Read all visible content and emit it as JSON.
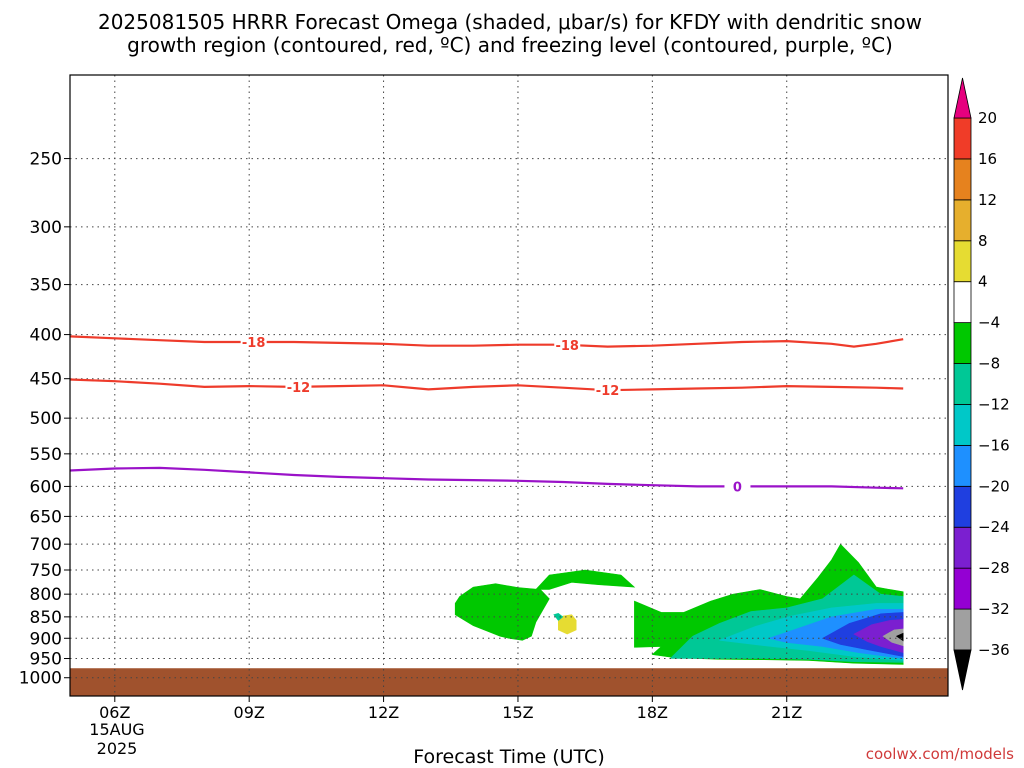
{
  "chart_data": {
    "type": "heatmap",
    "title_line1": "2025081505 HRRR Forecast Omega (shaded, μbar/s) for KFDY with dendritic snow",
    "title_line2": "growth region (contoured, red, ºC) and freezing level (contoured, purple, ºC)",
    "xlabel": "Forecast Time (UTC)",
    "credit": "coolwx.com/models",
    "x_range_hours": [
      5,
      24.6
    ],
    "x_ticks": [
      {
        "hour": 6,
        "label": "06Z"
      },
      {
        "hour": 9,
        "label": "09Z"
      },
      {
        "hour": 12,
        "label": "12Z"
      },
      {
        "hour": 15,
        "label": "15Z"
      },
      {
        "hour": 18,
        "label": "18Z"
      },
      {
        "hour": 21,
        "label": "21Z"
      }
    ],
    "date_lines": [
      "15AUG",
      "2025"
    ],
    "y_axis": {
      "scale": "log",
      "range": [
        200,
        1050
      ],
      "inverted": true
    },
    "y_ticks": [
      250,
      300,
      350,
      400,
      450,
      500,
      550,
      600,
      650,
      700,
      750,
      800,
      850,
      900,
      950,
      1000
    ],
    "grid": true,
    "surface_pressure": 975,
    "surface_color": "#a0522d",
    "colorbar": {
      "levels": [
        -36,
        -32,
        -28,
        -24,
        -20,
        -16,
        -12,
        -8,
        -4,
        4,
        8,
        12,
        16,
        20
      ],
      "labels": [
        "20",
        "16",
        "12",
        "8",
        "4",
        "−4",
        "−8",
        "−12",
        "−16",
        "−20",
        "−24",
        "−28",
        "−32",
        "−36"
      ],
      "colors": [
        "#a0a0a0",
        "#9400d3",
        "#7b1fd0",
        "#1f3fe0",
        "#1e90ff",
        "#00c8c8",
        "#00c896",
        "#00c800",
        "#ffffff",
        "#e6dc32",
        "#e6af2d",
        "#e6821e",
        "#f03c28"
      ],
      "under_color": "#000000",
      "over_color": "#e6007e"
    },
    "series": [
      {
        "name": "-18",
        "color": "#ee3b2b",
        "unit": "ºC",
        "x": [
          5,
          6,
          7,
          8,
          9,
          10,
          11,
          12,
          13,
          14,
          15,
          16,
          17,
          18,
          19,
          20,
          21,
          22,
          22.5,
          23,
          23.6
        ],
        "y": [
          402,
          404,
          406,
          408,
          408,
          408,
          409,
          410,
          412,
          412,
          411,
          411,
          413,
          412,
          410,
          408,
          407,
          410,
          413,
          410,
          405
        ],
        "label_at_hours": [
          9.1,
          16.1
        ]
      },
      {
        "name": "-12",
        "color": "#ee3b2b",
        "unit": "ºC",
        "x": [
          5,
          6,
          7,
          8,
          9,
          10,
          11,
          12,
          13,
          14,
          15,
          16,
          17,
          18,
          19,
          20,
          21,
          22,
          23,
          23.6
        ],
        "y": [
          451,
          453,
          456,
          460,
          459,
          460,
          459,
          458,
          463,
          460,
          458,
          461,
          464,
          463,
          462,
          461,
          459,
          460,
          461,
          462
        ],
        "label_at_hours": [
          10.1,
          17.0
        ]
      },
      {
        "name": "0",
        "color": "#9a12c8",
        "unit": "ºC",
        "x": [
          5,
          6,
          7,
          8,
          9,
          10,
          11,
          12,
          13,
          14,
          15,
          16,
          17,
          18,
          19,
          20,
          21,
          22,
          23,
          23.6
        ],
        "y": [
          575,
          572,
          571,
          574,
          578,
          582,
          585,
          587,
          589,
          590,
          591,
          593,
          596,
          598,
          600,
          600,
          600,
          600,
          602,
          603
        ],
        "label_at_hours": [
          19.9
        ]
      }
    ],
    "shaded_regions": [
      {
        "level": -4,
        "color": "#00c800",
        "points": [
          [
            13.7,
            805
          ],
          [
            14.0,
            785
          ],
          [
            14.5,
            778
          ],
          [
            15.0,
            786
          ],
          [
            15.5,
            790
          ],
          [
            15.7,
            810
          ],
          [
            15.4,
            862
          ],
          [
            15.3,
            895
          ],
          [
            15.1,
            905
          ],
          [
            14.8,
            900
          ],
          [
            14.6,
            895
          ],
          [
            14.0,
            870
          ],
          [
            13.6,
            845
          ],
          [
            13.6,
            820
          ]
        ]
      },
      {
        "level": -4,
        "color": "#00c800",
        "points": [
          [
            15.4,
            790
          ],
          [
            15.7,
            760
          ],
          [
            16.5,
            750
          ],
          [
            17.3,
            760
          ],
          [
            17.6,
            785
          ],
          [
            16.8,
            780
          ],
          [
            16.2,
            775
          ],
          [
            15.7,
            790
          ]
        ]
      },
      {
        "level": 4,
        "color": "#e6dc32",
        "points": [
          [
            15.9,
            860
          ],
          [
            16.0,
            848
          ],
          [
            16.2,
            845
          ],
          [
            16.3,
            858
          ],
          [
            16.3,
            880
          ],
          [
            16.1,
            890
          ],
          [
            15.9,
            880
          ]
        ]
      },
      {
        "level": -8,
        "color": "#00c896",
        "points": [
          [
            15.8,
            845
          ],
          [
            15.9,
            842
          ],
          [
            16.0,
            850
          ],
          [
            15.9,
            858
          ]
        ]
      },
      {
        "level": -4,
        "color": "#00c800",
        "points": [
          [
            17.6,
            815
          ],
          [
            18.2,
            840
          ],
          [
            18.7,
            840
          ],
          [
            19.3,
            815
          ],
          [
            19.8,
            800
          ],
          [
            20.4,
            790
          ],
          [
            21.0,
            805
          ],
          [
            21.3,
            810
          ],
          [
            21.7,
            765
          ],
          [
            22.0,
            730
          ],
          [
            22.2,
            700
          ],
          [
            22.6,
            735
          ],
          [
            23.0,
            785
          ],
          [
            23.6,
            795
          ],
          [
            23.6,
            965
          ],
          [
            22.5,
            962
          ],
          [
            21.5,
            955
          ],
          [
            20.5,
            953
          ],
          [
            19.5,
            952
          ],
          [
            18.5,
            948
          ],
          [
            18.0,
            940
          ],
          [
            18.2,
            920
          ],
          [
            17.6,
            922
          ]
        ]
      },
      {
        "level": -8,
        "color": "#00c896",
        "points": [
          [
            18.4,
            950
          ],
          [
            18.9,
            895
          ],
          [
            19.5,
            865
          ],
          [
            20.2,
            838
          ],
          [
            21.0,
            830
          ],
          [
            21.8,
            810
          ],
          [
            22.5,
            760
          ],
          [
            23.1,
            800
          ],
          [
            23.6,
            805
          ],
          [
            23.6,
            960
          ],
          [
            22.5,
            958
          ],
          [
            21.5,
            952
          ],
          [
            20.5,
            950
          ],
          [
            19.5,
            950
          ]
        ]
      },
      {
        "level": -12,
        "color": "#00c8c8",
        "points": [
          [
            19.5,
            905
          ],
          [
            20.3,
            872
          ],
          [
            21.1,
            848
          ],
          [
            22.0,
            830
          ],
          [
            23.0,
            820
          ],
          [
            23.6,
            820
          ],
          [
            23.6,
            955
          ],
          [
            22.5,
            945
          ],
          [
            21.5,
            930
          ],
          [
            20.5,
            918
          ]
        ]
      },
      {
        "level": -16,
        "color": "#1e90ff",
        "points": [
          [
            20.6,
            900
          ],
          [
            21.3,
            875
          ],
          [
            22.0,
            850
          ],
          [
            23.0,
            833
          ],
          [
            23.6,
            833
          ],
          [
            23.6,
            950
          ],
          [
            22.6,
            935
          ],
          [
            21.8,
            920
          ],
          [
            21.0,
            910
          ]
        ]
      },
      {
        "level": -20,
        "color": "#1f3fe0",
        "points": [
          [
            21.8,
            900
          ],
          [
            22.4,
            865
          ],
          [
            23.1,
            843
          ],
          [
            23.6,
            840
          ],
          [
            23.6,
            945
          ],
          [
            22.8,
            928
          ],
          [
            22.2,
            915
          ]
        ]
      },
      {
        "level": -28,
        "color": "#7b1fd0",
        "points": [
          [
            22.5,
            890
          ],
          [
            22.9,
            868
          ],
          [
            23.3,
            858
          ],
          [
            23.6,
            856
          ],
          [
            23.6,
            935
          ],
          [
            23.1,
            920
          ],
          [
            22.8,
            908
          ]
        ]
      },
      {
        "level": -32,
        "color": "#a0a0a0",
        "points": [
          [
            23.15,
            895
          ],
          [
            23.4,
            880
          ],
          [
            23.6,
            878
          ],
          [
            23.6,
            918
          ],
          [
            23.35,
            910
          ]
        ]
      },
      {
        "level": -36,
        "color": "#000000",
        "points": [
          [
            23.45,
            895
          ],
          [
            23.6,
            888
          ],
          [
            23.6,
            906
          ]
        ]
      }
    ]
  }
}
